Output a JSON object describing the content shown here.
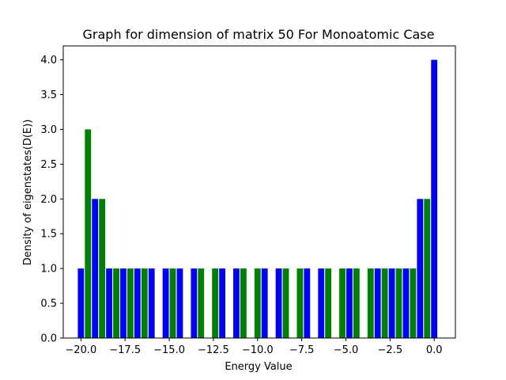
{
  "chart_data": {
    "type": "bar",
    "title": "Graph for dimension of matrix 50 For Monoatomic Case",
    "xlabel": "Energy Value",
    "ylabel": "Density of eigenstates(D(E))",
    "xlim": [
      -21.0,
      1.2
    ],
    "ylim": [
      0,
      4.2
    ],
    "xticks": [
      -20.0,
      -17.5,
      -15.0,
      -12.5,
      -10.0,
      -7.5,
      -5.0,
      -2.5,
      0.0
    ],
    "xtick_labels": [
      "−20.0",
      "−17.5",
      "−15.0",
      "−12.5",
      "−10.0",
      "−7.5",
      "−5.0",
      "−2.5",
      "0.0"
    ],
    "yticks": [
      0.0,
      0.5,
      1.0,
      1.5,
      2.0,
      2.5,
      3.0,
      3.5,
      4.0
    ],
    "ytick_labels": [
      "0.0",
      "0.5",
      "1.0",
      "1.5",
      "2.0",
      "2.5",
      "3.0",
      "3.5",
      "4.0"
    ],
    "grid": false,
    "bar_width": 0.35,
    "colors": {
      "blue": "#0000ff",
      "green": "#008000"
    },
    "bars": [
      {
        "x": -20.0,
        "value": 1,
        "color": "blue"
      },
      {
        "x": -19.6,
        "value": 3,
        "color": "green"
      },
      {
        "x": -19.2,
        "value": 2,
        "color": "blue"
      },
      {
        "x": -18.8,
        "value": 2,
        "color": "green"
      },
      {
        "x": -18.4,
        "value": 1,
        "color": "blue"
      },
      {
        "x": -18.0,
        "value": 1,
        "color": "green"
      },
      {
        "x": -17.6,
        "value": 1,
        "color": "blue"
      },
      {
        "x": -17.2,
        "value": 1,
        "color": "green"
      },
      {
        "x": -16.8,
        "value": 1,
        "color": "blue"
      },
      {
        "x": -16.4,
        "value": 1,
        "color": "green"
      },
      {
        "x": -16.0,
        "value": 1,
        "color": "blue"
      },
      {
        "x": -15.2,
        "value": 1,
        "color": "blue"
      },
      {
        "x": -14.8,
        "value": 1,
        "color": "green"
      },
      {
        "x": -14.4,
        "value": 1,
        "color": "blue"
      },
      {
        "x": -13.6,
        "value": 1,
        "color": "blue"
      },
      {
        "x": -13.2,
        "value": 1,
        "color": "green"
      },
      {
        "x": -12.4,
        "value": 1,
        "color": "green"
      },
      {
        "x": -12.0,
        "value": 1,
        "color": "blue"
      },
      {
        "x": -11.2,
        "value": 1,
        "color": "blue"
      },
      {
        "x": -10.8,
        "value": 1,
        "color": "green"
      },
      {
        "x": -10.0,
        "value": 1,
        "color": "green"
      },
      {
        "x": -9.6,
        "value": 1,
        "color": "blue"
      },
      {
        "x": -8.8,
        "value": 1,
        "color": "blue"
      },
      {
        "x": -8.4,
        "value": 1,
        "color": "green"
      },
      {
        "x": -7.6,
        "value": 1,
        "color": "green"
      },
      {
        "x": -7.2,
        "value": 1,
        "color": "blue"
      },
      {
        "x": -6.4,
        "value": 1,
        "color": "blue"
      },
      {
        "x": -6.0,
        "value": 1,
        "color": "green"
      },
      {
        "x": -5.2,
        "value": 1,
        "color": "green"
      },
      {
        "x": -4.8,
        "value": 1,
        "color": "blue"
      },
      {
        "x": -4.4,
        "value": 1,
        "color": "green"
      },
      {
        "x": -3.6,
        "value": 1,
        "color": "green"
      },
      {
        "x": -3.2,
        "value": 1,
        "color": "blue"
      },
      {
        "x": -2.8,
        "value": 1,
        "color": "green"
      },
      {
        "x": -2.4,
        "value": 1,
        "color": "blue"
      },
      {
        "x": -2.0,
        "value": 1,
        "color": "green"
      },
      {
        "x": -1.6,
        "value": 1,
        "color": "blue"
      },
      {
        "x": -1.2,
        "value": 1,
        "color": "green"
      },
      {
        "x": -0.8,
        "value": 2,
        "color": "blue"
      },
      {
        "x": -0.4,
        "value": 2,
        "color": "green"
      },
      {
        "x": 0.0,
        "value": 4,
        "color": "blue"
      }
    ]
  }
}
